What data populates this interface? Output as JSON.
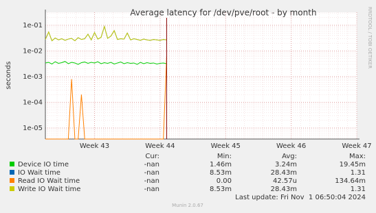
{
  "chart_data": {
    "type": "line",
    "title": "Average latency for /dev/pve/root - by month",
    "y_label": "seconds",
    "side_text": "RRDTOOL / TOBI OETIKER",
    "log_y": true,
    "grid": true,
    "xlim": [
      42.25,
      47
    ],
    "xticks": [
      {
        "value": 43,
        "label": "Week 43"
      },
      {
        "value": 44,
        "label": "Week 44"
      },
      {
        "value": 45,
        "label": "Week 45"
      },
      {
        "value": 46,
        "label": "Week 46"
      },
      {
        "value": 47,
        "label": "Week 47"
      }
    ],
    "ylim": [
      3.7e-06,
      0.32
    ],
    "yticks": [
      {
        "value": 1e-05,
        "label": "1e-05"
      },
      {
        "value": 0.0001,
        "label": "1e-04"
      },
      {
        "value": 0.001,
        "label": "1e-03"
      },
      {
        "value": 0.01,
        "label": "1e-02"
      },
      {
        "value": 0.1,
        "label": "1e-01"
      }
    ],
    "x": [
      42.25,
      42.3,
      42.35,
      42.4,
      42.45,
      42.5,
      42.55,
      42.6,
      42.65,
      42.7,
      42.75,
      42.8,
      42.85,
      42.9,
      42.95,
      43.0,
      43.05,
      43.1,
      43.15,
      43.2,
      43.25,
      43.3,
      43.35,
      43.4,
      43.45,
      43.5,
      43.55,
      43.6,
      43.65,
      43.7,
      43.75,
      43.8,
      43.85,
      43.9,
      43.95,
      44.0,
      44.05,
      44.1
    ],
    "stat_headers": [
      "Cur:",
      "Min:",
      "Avg:",
      "Max:"
    ],
    "series": [
      {
        "name": "Device IO time",
        "color": "#00cc00",
        "stats": [
          "-nan",
          "1.46m",
          "3.24m",
          "19.45m"
        ],
        "values": [
          0.0034,
          0.0036,
          0.0031,
          0.0038,
          0.0033,
          0.0035,
          0.0039,
          0.0032,
          0.0036,
          0.0034,
          0.003,
          0.0035,
          0.0037,
          0.0033,
          0.0036,
          0.0034,
          0.0038,
          0.0032,
          0.0035,
          0.0033,
          0.0036,
          0.0031,
          0.0034,
          0.0037,
          0.0032,
          0.0035,
          0.0033,
          0.0034,
          0.003,
          0.0036,
          0.0032,
          0.0035,
          0.0033,
          0.0034,
          0.0031,
          0.0033,
          0.0034,
          0.0032
        ]
      },
      {
        "name": "IO Wait time",
        "color": "#0066b3",
        "stats": [
          "-nan",
          "8.53m",
          "28.43m",
          "1.31"
        ],
        "values": [
          0.028,
          0.055,
          0.025,
          0.032,
          0.027,
          0.03,
          0.026,
          0.029,
          0.031,
          0.025,
          0.033,
          0.028,
          0.03,
          0.045,
          0.027,
          0.052,
          0.029,
          0.034,
          0.09,
          0.031,
          0.038,
          0.062,
          0.028,
          0.03,
          0.029,
          0.05,
          0.027,
          0.03,
          0.028,
          0.026,
          0.029,
          0.027,
          0.026,
          0.028,
          0.027,
          0.026,
          0.028,
          0.027
        ]
      },
      {
        "name": "Read IO Wait time",
        "color": "#ff8000",
        "stats": [
          "-nan",
          "0.00",
          "42.57u",
          "134.64m"
        ],
        "values": [
          0,
          0,
          0,
          0,
          0,
          0,
          0,
          0,
          0.0008,
          0,
          0,
          0.0002,
          0,
          0,
          0,
          0,
          0,
          0,
          0,
          0,
          0,
          0,
          0,
          0,
          0,
          0,
          0,
          0,
          0,
          0,
          0,
          0,
          0,
          0,
          0,
          0,
          0,
          0.006
        ]
      },
      {
        "name": "Write IO Wait time",
        "color": "#cccc00",
        "stats": [
          "-nan",
          "8.53m",
          "28.43m",
          "1.31"
        ],
        "values": [
          0.028,
          0.055,
          0.025,
          0.032,
          0.027,
          0.03,
          0.026,
          0.029,
          0.031,
          0.025,
          0.033,
          0.028,
          0.03,
          0.045,
          0.027,
          0.052,
          0.029,
          0.034,
          0.09,
          0.031,
          0.038,
          0.062,
          0.028,
          0.03,
          0.029,
          0.05,
          0.027,
          0.03,
          0.028,
          0.026,
          0.029,
          0.027,
          0.026,
          0.028,
          0.027,
          0.026,
          0.028,
          0.027
        ]
      }
    ],
    "last_update": "Last update: Fri Nov  1 06:50:04 2024",
    "footer": "Munin 2.0.67"
  }
}
